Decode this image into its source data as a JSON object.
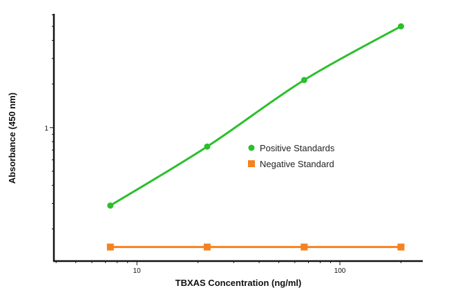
{
  "chart_data": {
    "type": "line",
    "title": "",
    "xlabel": "TBXAS Concentration (ng/ml)",
    "ylabel": "Absorbance (450 nm)",
    "x_scale": "log",
    "y_scale": "log",
    "xlim": [
      3.9,
      256
    ],
    "ylim": [
      0.12,
      6.1
    ],
    "x_ticks": [
      {
        "value": 10,
        "label": "10"
      },
      {
        "value": 100,
        "label": "100"
      }
    ],
    "y_ticks": [
      {
        "value": 1,
        "label": "1"
      }
    ],
    "grid": false,
    "legend_placement": "center-right",
    "x": [
      7.4,
      22.2,
      66.7,
      200
    ],
    "series": [
      {
        "name": "Positive Standards",
        "values": [
          0.29,
          0.74,
          2.13,
          5.0
        ],
        "color": "#2cbf2c",
        "marker": "circle",
        "smooth": true
      },
      {
        "name": "Negative Standard",
        "values": [
          0.15,
          0.15,
          0.15,
          0.15
        ],
        "color": "#f58220",
        "marker": "square",
        "smooth": false
      }
    ]
  }
}
